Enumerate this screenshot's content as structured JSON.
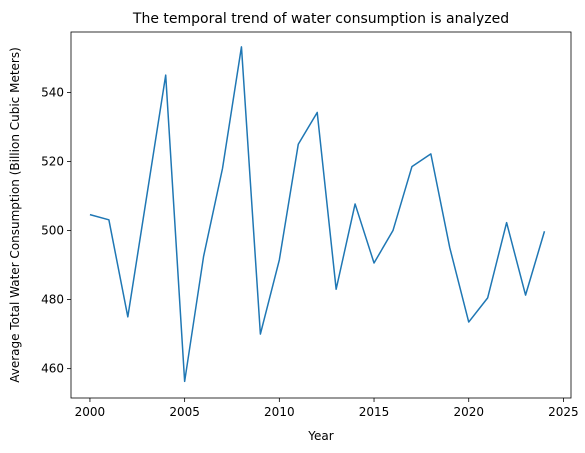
{
  "chart_data": {
    "type": "line",
    "title": "The temporal trend of water consumption is analyzed",
    "xlabel": "Year",
    "ylabel": "Average Total Water Consumption (Billion Cubic Meters)",
    "xlim": [
      1999,
      2025.4
    ],
    "ylim": [
      451.5,
      557.5
    ],
    "xticks": [
      2000,
      2005,
      2010,
      2015,
      2020,
      2025
    ],
    "yticks": [
      460,
      480,
      500,
      520,
      540
    ],
    "grid": false,
    "line_color": "#1f77b4",
    "x": [
      2000,
      2001,
      2002,
      2003,
      2004,
      2005,
      2006,
      2007,
      2008,
      2009,
      2010,
      2011,
      2012,
      2013,
      2014,
      2015,
      2016,
      2017,
      2018,
      2019,
      2020,
      2021,
      2022,
      2023,
      2024
    ],
    "values": [
      504.6,
      503.1,
      475.0,
      510.0,
      545.0,
      456.3,
      492.5,
      518.0,
      553.2,
      470.0,
      491.5,
      525.0,
      534.2,
      483.0,
      507.7,
      490.6,
      500.0,
      518.5,
      522.2,
      495.0,
      473.5,
      480.5,
      502.3,
      481.3,
      499.8
    ]
  }
}
